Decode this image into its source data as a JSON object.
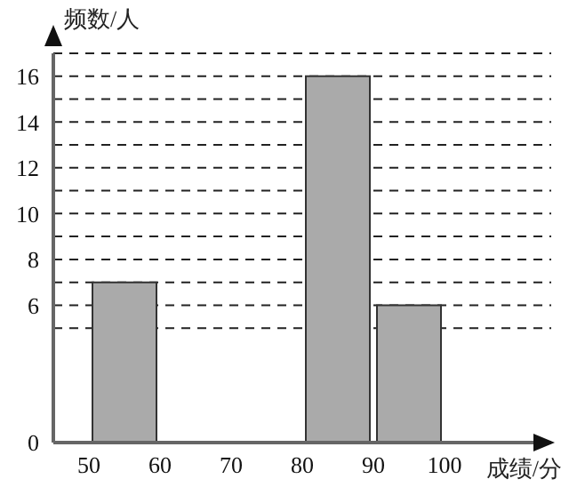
{
  "chart_data": {
    "type": "histogram",
    "xlabel": "成绩/分",
    "ylabel": "频数/人",
    "bins": [
      50,
      60,
      70,
      80,
      90,
      100
    ],
    "values": [
      7,
      0,
      0,
      16,
      6
    ],
    "color": "#aaaaaa",
    "xlim": [
      45,
      115
    ],
    "xticks": [
      50,
      60,
      70,
      80,
      90,
      100
    ],
    "ylim": [
      0,
      17
    ],
    "yticks": [
      0,
      {
        "value": 5,
        "label": null
      },
      6,
      {
        "value": 7,
        "label": null
      },
      8,
      {
        "value": 9,
        "label": null
      },
      10,
      {
        "value": 11,
        "label": null
      },
      12,
      {
        "value": 13,
        "label": null
      },
      14,
      {
        "value": 15,
        "label": null
      },
      16
    ],
    "grid": "y"
  }
}
